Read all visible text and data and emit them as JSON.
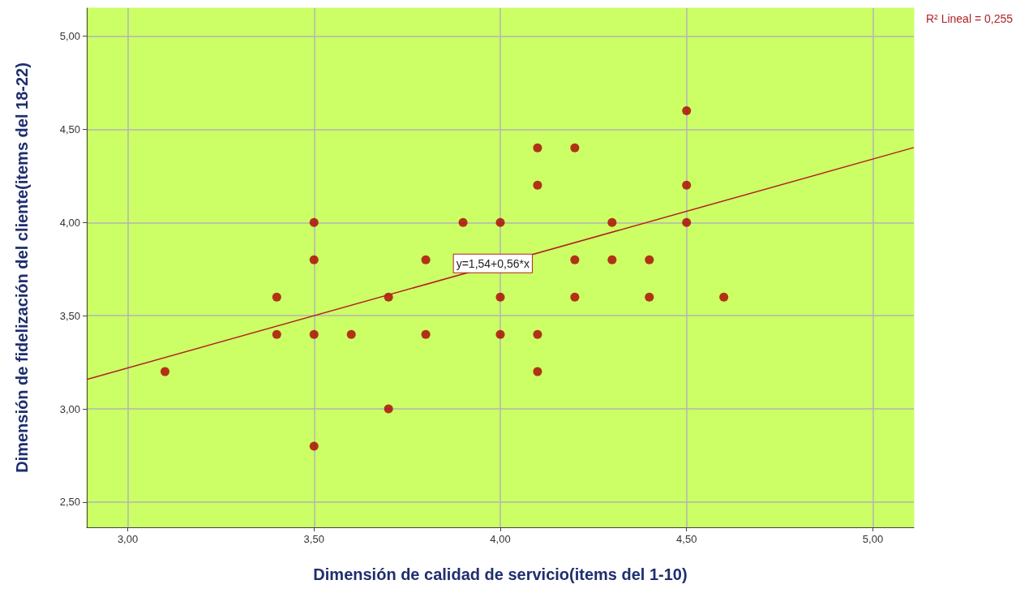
{
  "chart_data": {
    "type": "scatter",
    "xlabel": "Dimensión de calidad de servicio(items del 1-10)",
    "ylabel": "Dimensión de fidelización del cliente(items del 18-22)",
    "xlim": [
      2.89,
      5.11
    ],
    "ylim": [
      2.365,
      5.15
    ],
    "xticks": [
      {
        "value": 3,
        "label": "3,00"
      },
      {
        "value": 3.5,
        "label": "3,50"
      },
      {
        "value": 4,
        "label": "4,00"
      },
      {
        "value": 4.5,
        "label": "4,50"
      },
      {
        "value": 5,
        "label": "5,00"
      }
    ],
    "yticks": [
      {
        "value": 2.5,
        "label": "2,50"
      },
      {
        "value": 3,
        "label": "3,00"
      },
      {
        "value": 3.5,
        "label": "3,50"
      },
      {
        "value": 4,
        "label": "4,00"
      },
      {
        "value": 4.5,
        "label": "4,50"
      },
      {
        "value": 5,
        "label": "5,00"
      }
    ],
    "grid": true,
    "series": [
      {
        "marker": "circle",
        "color": "#aa0000",
        "x": [
          3.1,
          3.4,
          3.4,
          3.5,
          3.5,
          3.5,
          3.5,
          3.6,
          3.7,
          3.7,
          3.8,
          3.8,
          3.9,
          4.0,
          4.0,
          4.0,
          4.1,
          4.1,
          4.1,
          4.1,
          4.2,
          4.2,
          4.2,
          4.3,
          4.3,
          4.4,
          4.4,
          4.5,
          4.5,
          4.5,
          4.6
        ],
        "values": [
          3.2,
          3.6,
          3.4,
          4.0,
          3.8,
          3.4,
          2.8,
          3.4,
          3.6,
          3.0,
          3.8,
          3.4,
          4.0,
          4.0,
          3.6,
          3.4,
          4.4,
          4.2,
          3.4,
          3.2,
          4.4,
          3.8,
          3.6,
          4.0,
          3.8,
          3.8,
          3.6,
          4.6,
          4.2,
          4.0,
          3.6
        ]
      },
      {
        "type": "line",
        "marker": "none",
        "color": "#b22222",
        "x": [
          2.89,
          5.11
        ],
        "values": [
          3.158,
          4.402
        ]
      }
    ],
    "annotations": [
      {
        "text": "y=1,54+0,56*x",
        "x": 3.98,
        "y": 3.78
      },
      "R² Lineal = 0,255"
    ]
  }
}
